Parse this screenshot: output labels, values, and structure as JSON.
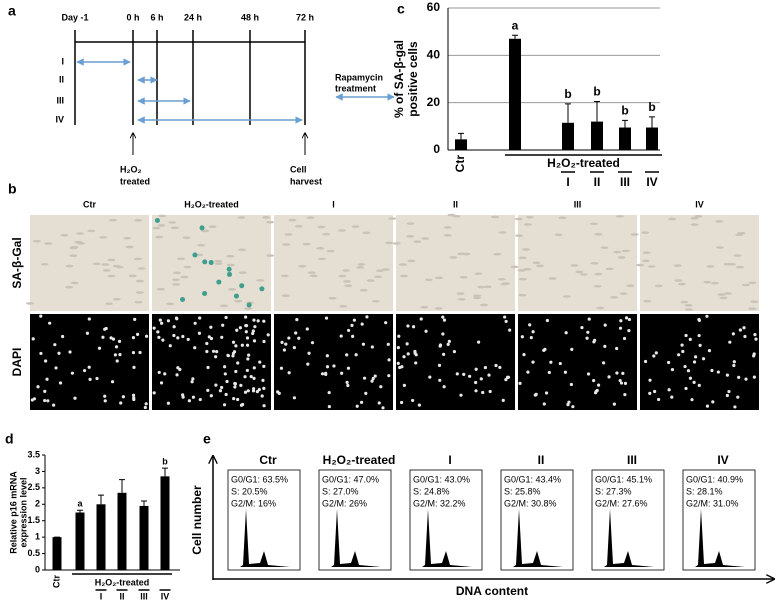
{
  "panel_a": {
    "label": "a",
    "timepoints": [
      "Day -1",
      "0 h",
      "6 h",
      "24 h",
      "48 h",
      "72 h"
    ],
    "regimens": [
      "I",
      "II",
      "III",
      "IV"
    ],
    "drug_label": [
      "Rapamycin",
      "treatment"
    ],
    "start_label": [
      "H₂O₂",
      "treated"
    ],
    "end_label": [
      "Cell",
      "harvest"
    ]
  },
  "panel_b": {
    "label": "b",
    "columns": [
      "Ctr",
      "H₂O₂-treated",
      "I",
      "II",
      "III",
      "IV"
    ],
    "rows": [
      "SA-β-Gal",
      "DAPI"
    ]
  },
  "chart_data": [
    {
      "panel_label": "c",
      "type": "bar",
      "categories": [
        "Ctr",
        null,
        "I",
        "II",
        "III",
        "IV"
      ],
      "group_label": "H₂O₂-treated",
      "values": [
        4.5,
        47,
        11.5,
        12,
        9.5,
        9.5
      ],
      "errors": [
        2.5,
        1.5,
        8,
        8.5,
        3,
        4.5
      ],
      "annotations": [
        null,
        "a",
        "b",
        "b",
        "b",
        "b"
      ],
      "ylabel": [
        "% of SA-β-gal",
        "positive cells"
      ],
      "ylim": [
        0,
        60
      ],
      "yticks": [
        0,
        20,
        40,
        60
      ],
      "grid": true,
      "color": "#000000"
    },
    {
      "panel_label": "d",
      "type": "bar",
      "categories": [
        "Ctr",
        null,
        "I",
        "II",
        "III",
        "IV"
      ],
      "group_label": "H₂O₂-treated",
      "values": [
        1.0,
        1.75,
        2.0,
        2.35,
        1.95,
        2.85
      ],
      "errors": [
        0,
        0.07,
        0.28,
        0.4,
        0.15,
        0.25
      ],
      "annotations": [
        null,
        "a",
        null,
        null,
        null,
        "b"
      ],
      "ylabel": [
        "Relative p16 mRNA",
        "expression level"
      ],
      "ylim": [
        0,
        3.5
      ],
      "yticks": [
        0,
        0.5,
        1,
        1.5,
        2,
        2.5,
        3,
        3.5
      ],
      "grid": false,
      "color": "#000000"
    }
  ],
  "panel_e": {
    "label": "e",
    "ylabel": "Cell number",
    "xlabel": "DNA content",
    "samples": [
      {
        "name": "Ctr",
        "stats": [
          "G0/G1: 63.5%",
          "S: 20.5%",
          "G2/M: 16%"
        ]
      },
      {
        "name": "H₂O₂-treated",
        "stats": [
          "G0/G1: 47.0%",
          "S: 27.0%",
          "G2/M: 26%"
        ]
      },
      {
        "name": "I",
        "stats": [
          "G0/G1: 43.0%",
          "S: 24.8%",
          "G2/M: 32.2%"
        ]
      },
      {
        "name": "II",
        "stats": [
          "G0/G1: 43.4%",
          "S: 25.8%",
          "G2/M: 30.8%"
        ]
      },
      {
        "name": "III",
        "stats": [
          "G0/G1: 45.1%",
          "S: 27.3%",
          "G2/M: 27.6%"
        ]
      },
      {
        "name": "IV",
        "stats": [
          "G0/G1: 40.9%",
          "S: 28.1%",
          "G2/M: 31.0%"
        ]
      }
    ]
  }
}
